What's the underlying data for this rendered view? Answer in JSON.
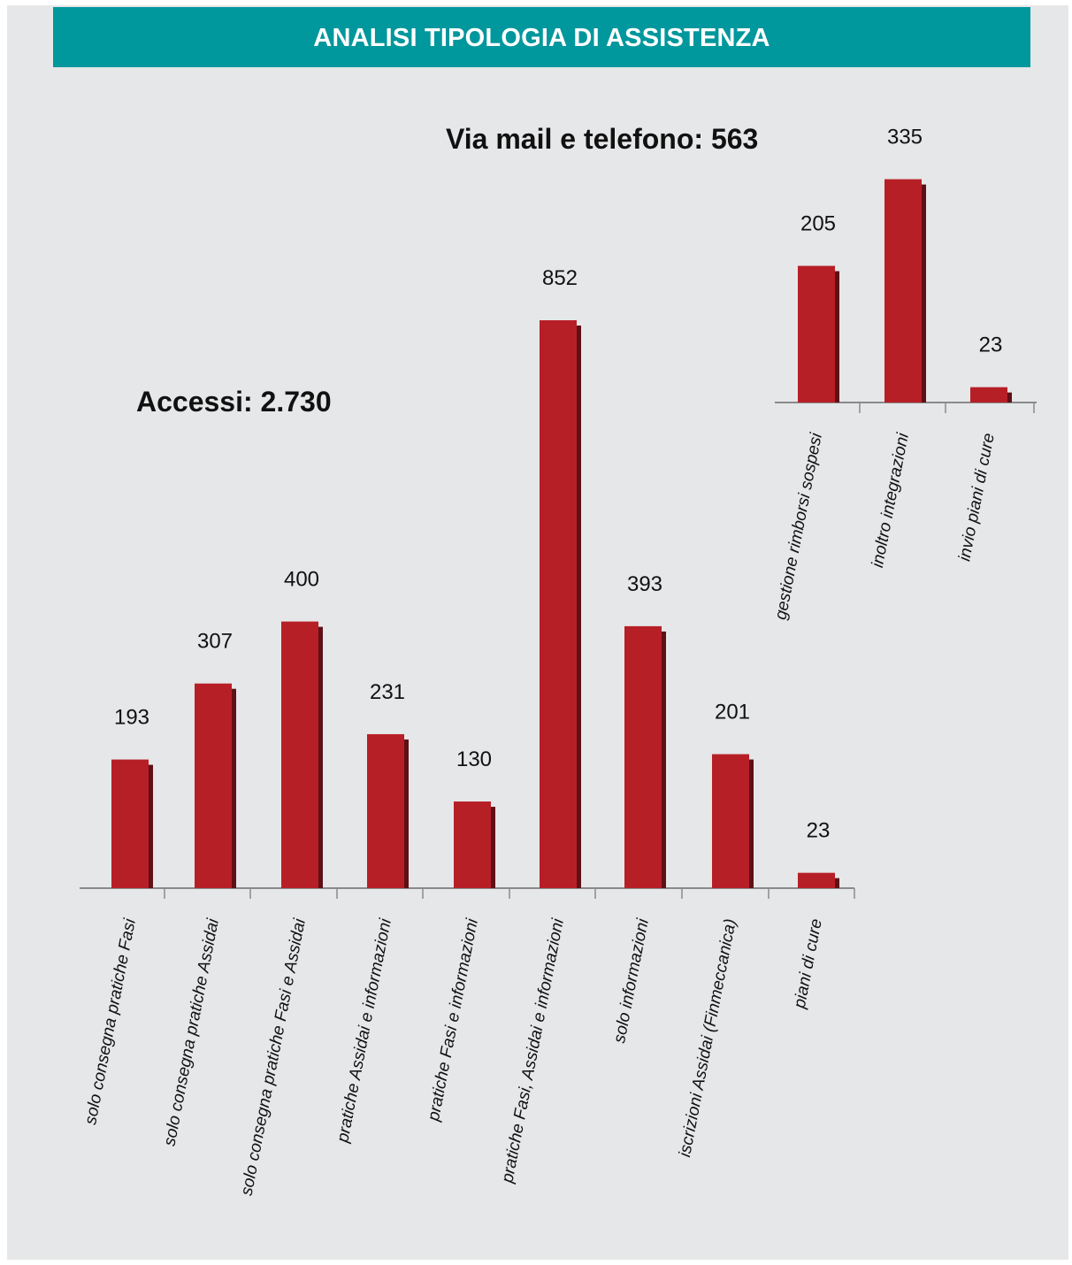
{
  "header": {
    "title": "ANALISI TIPOLOGIA DI ASSISTENZA"
  },
  "colors": {
    "header_bg": "#00979d",
    "panel_bg": "#e6e7e8",
    "bar": "#b71f27",
    "bar_shadow": "#5e1016",
    "axis": "#8a8a8a"
  },
  "chart_data": [
    {
      "type": "bar",
      "title": "Accessi: 2.730",
      "categories": [
        "solo consegna pratiche Fasi",
        "solo consegna pratiche Assidai",
        "solo consegna pratiche Fasi e Assidai",
        "pratiche Assidai e informazioni",
        "pratiche Fasi e informazioni",
        "pratiche Fasi, Assidai e informazioni",
        "solo informazioni",
        "iscrizioni Assidai (Finmeccanica)",
        "piani di cure"
      ],
      "values": [
        193,
        307,
        400,
        231,
        130,
        852,
        393,
        201,
        23
      ],
      "data_labels": [
        "193",
        "307",
        "400",
        "231",
        "130",
        "852",
        "393",
        "201",
        "23"
      ],
      "xlabel": "",
      "ylabel": "",
      "grid": false,
      "legend": "none"
    },
    {
      "type": "bar",
      "title": "Via mail e telefono: 563",
      "categories": [
        "gestione rimborsi sospesi",
        "inoltro integrazioni",
        "invio piani di cure"
      ],
      "values": [
        205,
        335,
        23
      ],
      "data_labels": [
        "205",
        "335",
        "23"
      ],
      "xlabel": "",
      "ylabel": "",
      "grid": false,
      "legend": "none"
    }
  ]
}
